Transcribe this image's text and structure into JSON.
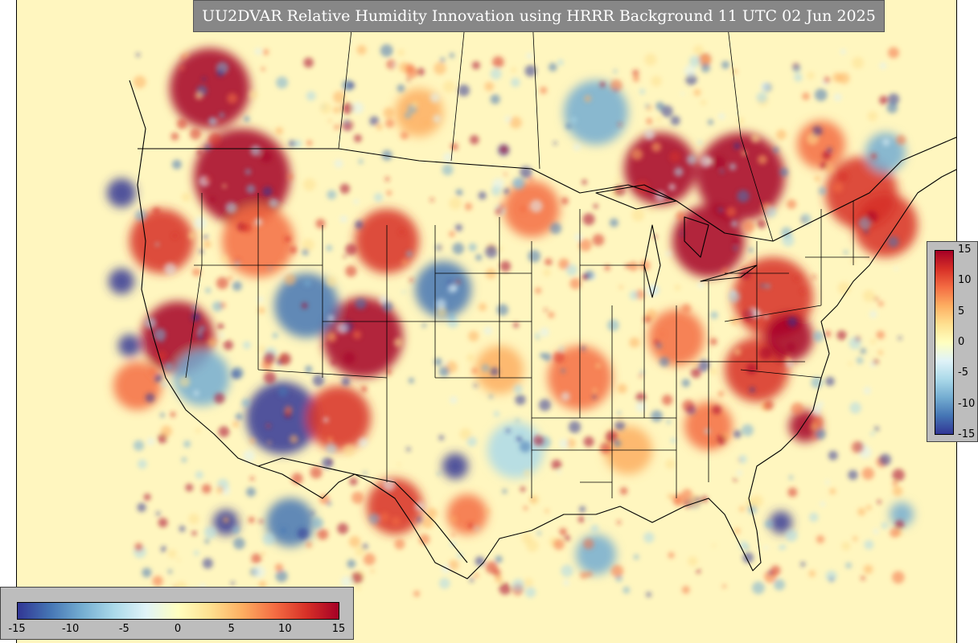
{
  "title": "UU2DVAR Relative Humidity Innovation using HRRR Background 11 UTC 02 Jun 2025",
  "colorbar": {
    "vmin": -15,
    "vmax": 15,
    "vertical_ticks": [
      "15",
      "10",
      "5",
      "0",
      "-5",
      "-10",
      "-15"
    ],
    "horizontal_ticks": [
      "-15",
      "-10",
      "-5",
      "0",
      "5",
      "10",
      "15"
    ],
    "colors": [
      "#313695",
      "#4575b4",
      "#74add1",
      "#abd9e9",
      "#e0f3f8",
      "#ffffbf",
      "#fee090",
      "#fdae61",
      "#f46d43",
      "#d73027",
      "#a50026"
    ]
  },
  "map": {
    "background_color": "#fff6bf",
    "boundary_color": "#000000"
  }
}
